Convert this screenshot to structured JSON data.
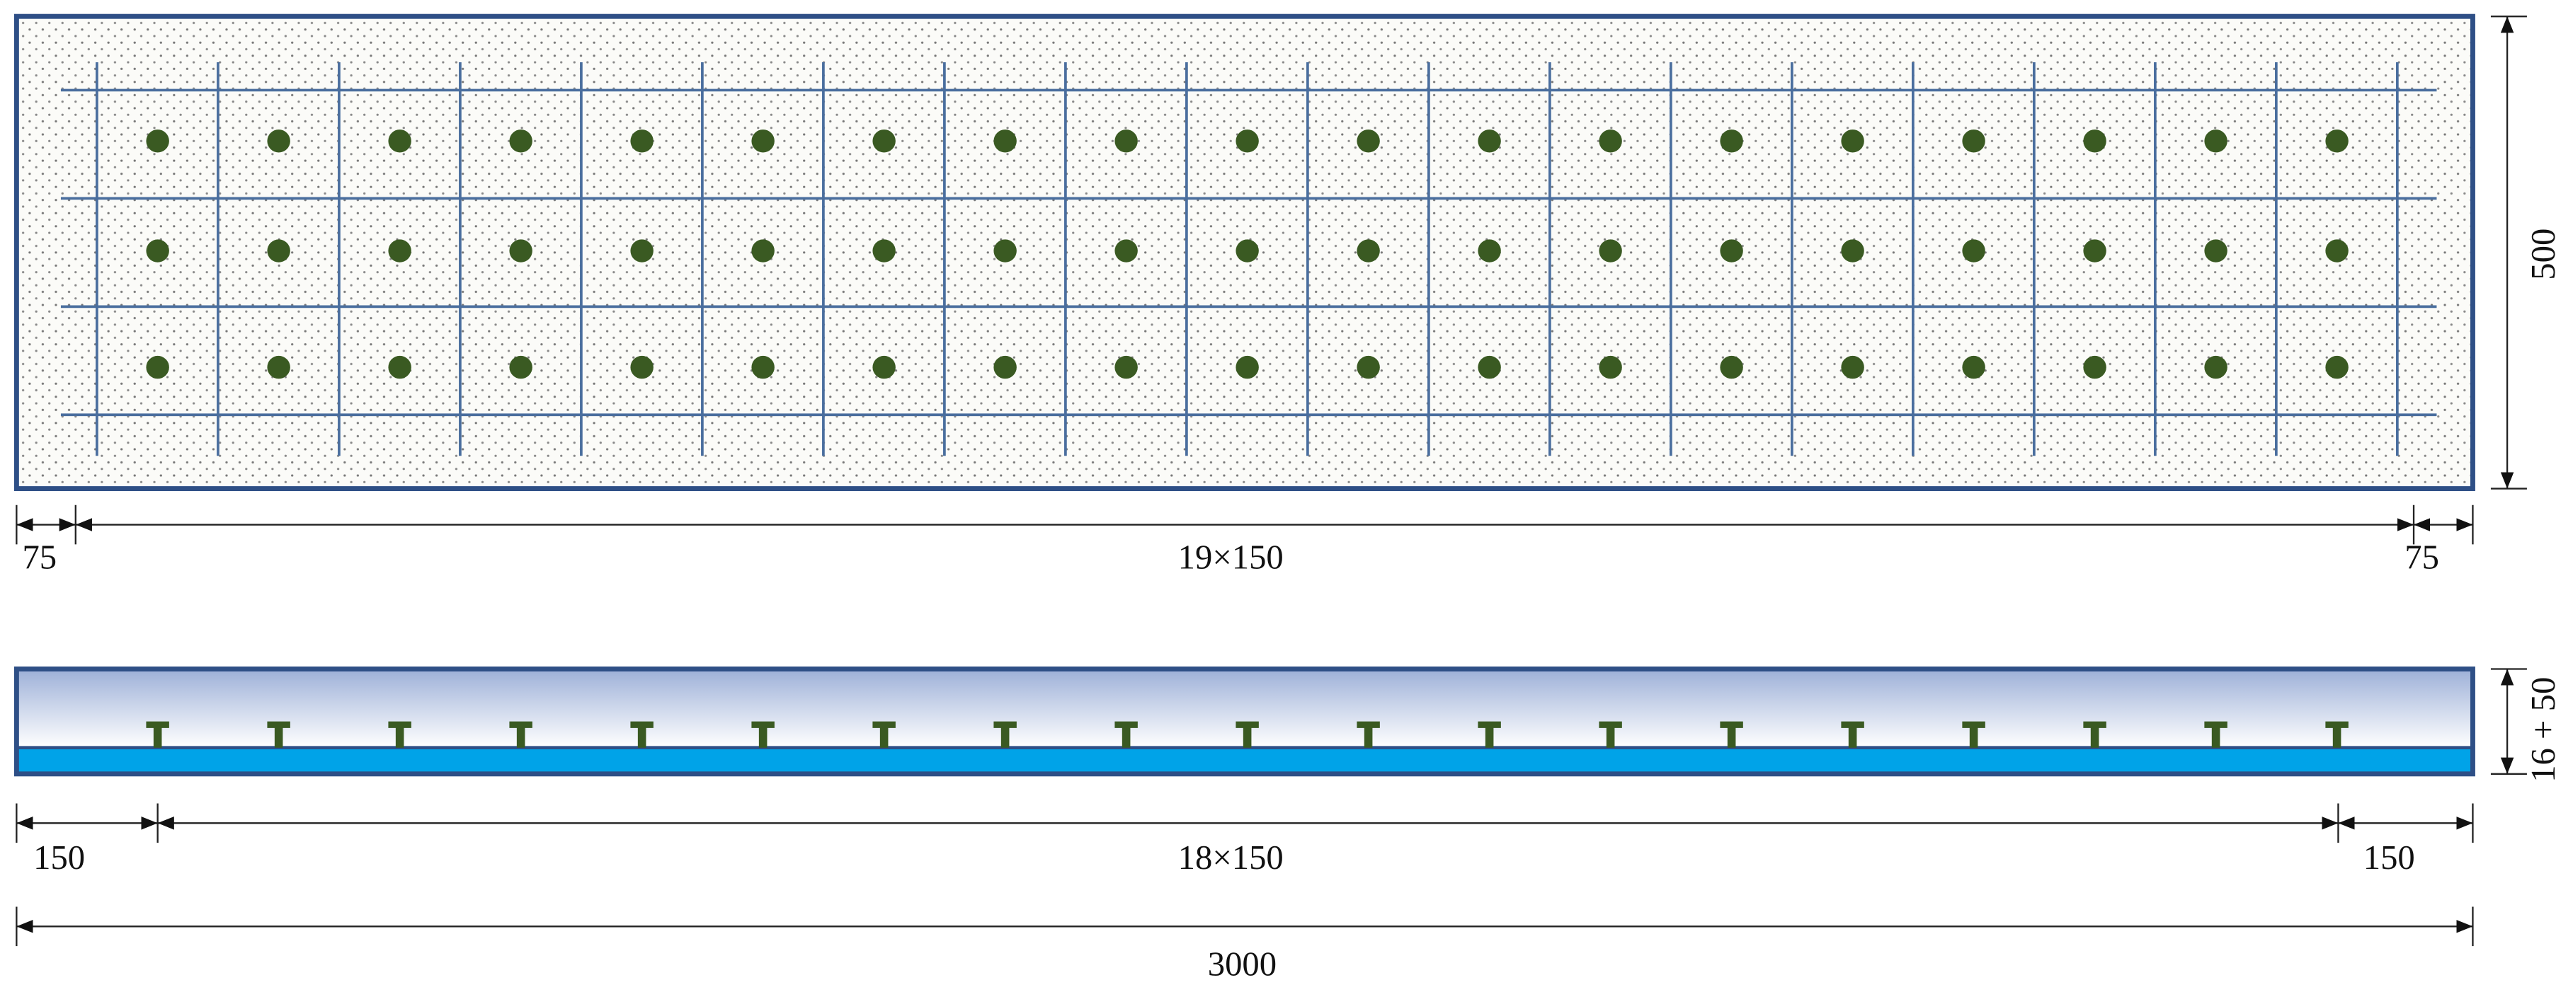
{
  "plan_view": {
    "dimensions": {
      "left_edge": "75",
      "spacing": "19×150",
      "right_edge": "75",
      "width": "500"
    }
  },
  "section_view": {
    "dimensions": {
      "left_edge": "150",
      "spacing": "18×150",
      "right_edge": "150",
      "thickness": "16 + 50",
      "total_length": "3000"
    }
  }
}
